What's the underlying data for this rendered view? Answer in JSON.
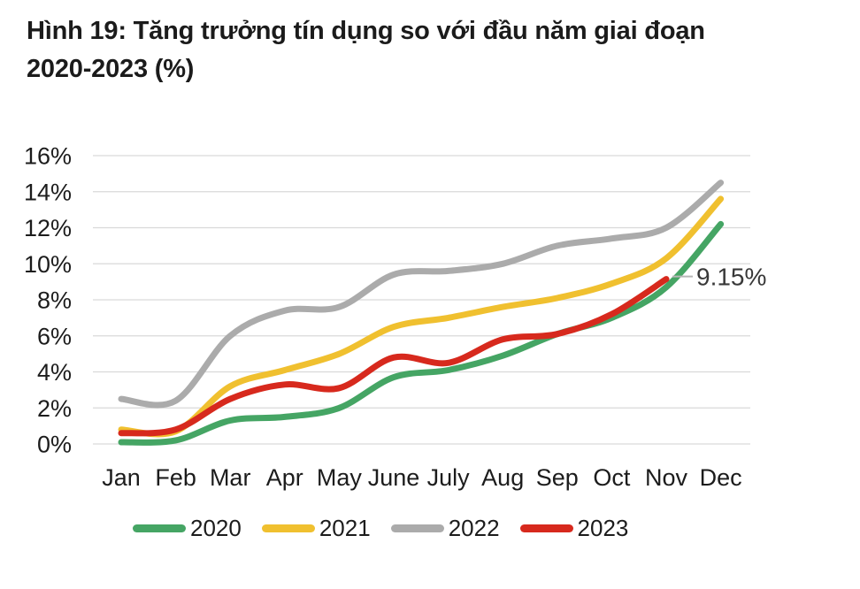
{
  "title": {
    "line1": "Hình 19: Tăng trưởng tín dụng so với đầu năm giai đoạn",
    "line2": "2020-2023 (%)"
  },
  "chart_data": {
    "type": "line",
    "title": "Hình 19: Tăng trưởng tín dụng so với đầu năm giai đoạn 2020-2023 (%)",
    "categories": [
      "Jan",
      "Feb",
      "Mar",
      "Apr",
      "May",
      "June",
      "July",
      "Aug",
      "Sep",
      "Oct",
      "Nov",
      "Dec"
    ],
    "yticks": [
      "0%",
      "2%",
      "4%",
      "6%",
      "8%",
      "10%",
      "12%",
      "14%",
      "16%"
    ],
    "ylim": [
      0,
      16
    ],
    "grid": "horizontal",
    "grid_color": "#d9d9d9",
    "text_color": "#1c1c1c",
    "legend_position": "bottom",
    "series": [
      {
        "name": "2020",
        "color": "#45a564",
        "values": [
          0.1,
          0.2,
          1.3,
          1.5,
          2.0,
          3.7,
          4.1,
          4.9,
          6.1,
          7.0,
          8.7,
          12.2
        ]
      },
      {
        "name": "2021",
        "color": "#f0c02f",
        "values": [
          0.8,
          0.7,
          3.2,
          4.1,
          5.0,
          6.5,
          7.0,
          7.6,
          8.1,
          8.9,
          10.3,
          13.6
        ]
      },
      {
        "name": "2022",
        "color": "#ababab",
        "values": [
          2.5,
          2.4,
          6.0,
          7.4,
          7.6,
          9.4,
          9.6,
          10.0,
          11.0,
          11.4,
          12.0,
          14.5
        ]
      },
      {
        "name": "2023",
        "color": "#d7291d",
        "values": [
          0.6,
          0.8,
          2.5,
          3.3,
          3.1,
          4.8,
          4.5,
          5.8,
          6.1,
          7.2,
          9.15
        ]
      }
    ],
    "annotation": {
      "text": "9.15%",
      "series": "2023",
      "month": "Nov",
      "value": 9.15
    }
  }
}
